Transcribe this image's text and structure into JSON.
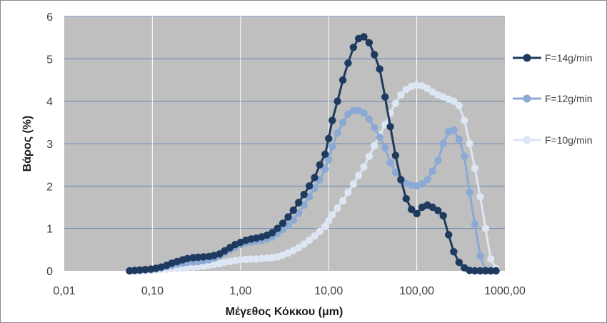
{
  "chart_data": {
    "type": "line",
    "title": "",
    "xlabel": "Μέγεθος Κόκκου (μm)",
    "ylabel": "Βάρος (%)",
    "x_scale": "log",
    "xlim": [
      0.01,
      1000
    ],
    "ylim": [
      0,
      6
    ],
    "x_ticks": [
      0.01,
      0.1,
      1,
      10,
      100,
      1000
    ],
    "x_tick_labels": [
      "0,01",
      "0,10",
      "1,00",
      "10,00",
      "100,00",
      "1000,00"
    ],
    "y_ticks": [
      0,
      1,
      2,
      3,
      4,
      5,
      6
    ],
    "y_tick_labels": [
      "0",
      "1",
      "2",
      "3",
      "4",
      "5",
      "6"
    ],
    "grid": true,
    "legend_position": "right",
    "series": [
      {
        "name": "F=14g/min",
        "color": "#1f3a5f",
        "marker": "circle",
        "points": [
          [
            0.055,
            0
          ],
          [
            0.063,
            0.01
          ],
          [
            0.072,
            0.02
          ],
          [
            0.083,
            0.03
          ],
          [
            0.096,
            0.04
          ],
          [
            0.11,
            0.06
          ],
          [
            0.126,
            0.09
          ],
          [
            0.145,
            0.13
          ],
          [
            0.166,
            0.18
          ],
          [
            0.191,
            0.22
          ],
          [
            0.22,
            0.26
          ],
          [
            0.25,
            0.29
          ],
          [
            0.29,
            0.31
          ],
          [
            0.33,
            0.32
          ],
          [
            0.38,
            0.33
          ],
          [
            0.44,
            0.34
          ],
          [
            0.5,
            0.36
          ],
          [
            0.58,
            0.4
          ],
          [
            0.66,
            0.47
          ],
          [
            0.76,
            0.55
          ],
          [
            0.87,
            0.62
          ],
          [
            1.0,
            0.67
          ],
          [
            1.15,
            0.72
          ],
          [
            1.32,
            0.75
          ],
          [
            1.51,
            0.77
          ],
          [
            1.74,
            0.8
          ],
          [
            2.0,
            0.84
          ],
          [
            2.3,
            0.9
          ],
          [
            2.63,
            1.0
          ],
          [
            3.02,
            1.12
          ],
          [
            3.47,
            1.27
          ],
          [
            3.98,
            1.43
          ],
          [
            4.57,
            1.61
          ],
          [
            5.25,
            1.8
          ],
          [
            6.03,
            2.0
          ],
          [
            6.92,
            2.2
          ],
          [
            7.94,
            2.5
          ],
          [
            9.12,
            2.75
          ],
          [
            10.0,
            3.12
          ],
          [
            11.0,
            3.55
          ],
          [
            12.6,
            4.0
          ],
          [
            14.5,
            4.5
          ],
          [
            16.6,
            4.9
          ],
          [
            19.1,
            5.27
          ],
          [
            21.9,
            5.48
          ],
          [
            25.1,
            5.52
          ],
          [
            28.8,
            5.38
          ],
          [
            33.1,
            5.1
          ],
          [
            38.0,
            4.76
          ],
          [
            43.7,
            4.1
          ],
          [
            50.1,
            3.4
          ],
          [
            57.5,
            2.72
          ],
          [
            66.1,
            2.15
          ],
          [
            75.9,
            1.7
          ],
          [
            87.1,
            1.45
          ],
          [
            100,
            1.35
          ],
          [
            115,
            1.5
          ],
          [
            132,
            1.55
          ],
          [
            151,
            1.5
          ],
          [
            174,
            1.42
          ],
          [
            200,
            1.3
          ],
          [
            230,
            0.85
          ],
          [
            263,
            0.45
          ],
          [
            302,
            0.2
          ],
          [
            347,
            0.07
          ],
          [
            398,
            0.01
          ],
          [
            457,
            0
          ],
          [
            525,
            0
          ],
          [
            603,
            0
          ],
          [
            692,
            0
          ],
          [
            794,
            0
          ]
        ]
      },
      {
        "name": "F=12g/min",
        "color": "#8aa9d4",
        "marker": "circle",
        "points": [
          [
            0.055,
            0
          ],
          [
            0.063,
            0.01
          ],
          [
            0.072,
            0.01
          ],
          [
            0.083,
            0.02
          ],
          [
            0.096,
            0.03
          ],
          [
            0.11,
            0.05
          ],
          [
            0.126,
            0.07
          ],
          [
            0.145,
            0.1
          ],
          [
            0.166,
            0.13
          ],
          [
            0.191,
            0.16
          ],
          [
            0.22,
            0.18
          ],
          [
            0.25,
            0.2
          ],
          [
            0.29,
            0.21
          ],
          [
            0.33,
            0.22
          ],
          [
            0.38,
            0.24
          ],
          [
            0.44,
            0.26
          ],
          [
            0.5,
            0.3
          ],
          [
            0.58,
            0.36
          ],
          [
            0.66,
            0.42
          ],
          [
            0.76,
            0.5
          ],
          [
            0.87,
            0.56
          ],
          [
            1.0,
            0.62
          ],
          [
            1.15,
            0.66
          ],
          [
            1.32,
            0.68
          ],
          [
            1.51,
            0.7
          ],
          [
            1.74,
            0.72
          ],
          [
            2.0,
            0.75
          ],
          [
            2.3,
            0.8
          ],
          [
            2.63,
            0.88
          ],
          [
            3.02,
            0.98
          ],
          [
            3.47,
            1.08
          ],
          [
            3.98,
            1.2
          ],
          [
            4.57,
            1.36
          ],
          [
            5.25,
            1.55
          ],
          [
            6.03,
            1.75
          ],
          [
            6.92,
            1.95
          ],
          [
            7.94,
            2.15
          ],
          [
            9.12,
            2.4
          ],
          [
            10.0,
            2.62
          ],
          [
            11.0,
            2.93
          ],
          [
            12.6,
            3.25
          ],
          [
            14.5,
            3.5
          ],
          [
            16.6,
            3.7
          ],
          [
            19.1,
            3.78
          ],
          [
            21.9,
            3.78
          ],
          [
            25.1,
            3.72
          ],
          [
            28.8,
            3.58
          ],
          [
            33.1,
            3.38
          ],
          [
            38.0,
            3.15
          ],
          [
            43.7,
            2.9
          ],
          [
            50.1,
            2.55
          ],
          [
            57.5,
            2.32
          ],
          [
            66.1,
            2.15
          ],
          [
            75.9,
            2.06
          ],
          [
            87.1,
            2.02
          ],
          [
            100,
            2.0
          ],
          [
            115,
            2.05
          ],
          [
            132,
            2.15
          ],
          [
            151,
            2.35
          ],
          [
            174,
            2.6
          ],
          [
            200,
            3.0
          ],
          [
            230,
            3.28
          ],
          [
            263,
            3.32
          ],
          [
            302,
            3.1
          ],
          [
            347,
            2.7
          ],
          [
            398,
            1.85
          ],
          [
            457,
            1.1
          ],
          [
            525,
            0.35
          ],
          [
            603,
            0.02
          ],
          [
            692,
            0
          ],
          [
            794,
            0
          ]
        ]
      },
      {
        "name": "F=10g/min",
        "color": "#dde6f3",
        "marker": "circle",
        "points": [
          [
            0.055,
            0
          ],
          [
            0.063,
            0
          ],
          [
            0.072,
            0
          ],
          [
            0.083,
            0
          ],
          [
            0.096,
            0.01
          ],
          [
            0.11,
            0.02
          ],
          [
            0.126,
            0.03
          ],
          [
            0.145,
            0.04
          ],
          [
            0.166,
            0.05
          ],
          [
            0.191,
            0.06
          ],
          [
            0.22,
            0.07
          ],
          [
            0.25,
            0.08
          ],
          [
            0.29,
            0.09
          ],
          [
            0.33,
            0.1
          ],
          [
            0.38,
            0.11
          ],
          [
            0.44,
            0.13
          ],
          [
            0.5,
            0.15
          ],
          [
            0.58,
            0.17
          ],
          [
            0.66,
            0.2
          ],
          [
            0.76,
            0.22
          ],
          [
            0.87,
            0.24
          ],
          [
            1.0,
            0.26
          ],
          [
            1.15,
            0.27
          ],
          [
            1.32,
            0.28
          ],
          [
            1.51,
            0.28
          ],
          [
            1.74,
            0.29
          ],
          [
            2.0,
            0.3
          ],
          [
            2.3,
            0.31
          ],
          [
            2.63,
            0.33
          ],
          [
            3.02,
            0.37
          ],
          [
            3.47,
            0.42
          ],
          [
            3.98,
            0.48
          ],
          [
            4.57,
            0.55
          ],
          [
            5.25,
            0.63
          ],
          [
            6.03,
            0.72
          ],
          [
            6.92,
            0.82
          ],
          [
            7.94,
            0.93
          ],
          [
            9.12,
            1.05
          ],
          [
            10.0,
            1.18
          ],
          [
            11.0,
            1.32
          ],
          [
            12.6,
            1.48
          ],
          [
            14.5,
            1.65
          ],
          [
            16.6,
            1.85
          ],
          [
            19.1,
            2.05
          ],
          [
            21.9,
            2.25
          ],
          [
            25.1,
            2.45
          ],
          [
            28.8,
            2.7
          ],
          [
            33.1,
            2.95
          ],
          [
            38.0,
            3.2
          ],
          [
            43.7,
            3.45
          ],
          [
            50.1,
            3.72
          ],
          [
            57.5,
            3.95
          ],
          [
            66.1,
            4.15
          ],
          [
            75.9,
            4.28
          ],
          [
            87.1,
            4.35
          ],
          [
            100,
            4.38
          ],
          [
            115,
            4.36
          ],
          [
            132,
            4.3
          ],
          [
            151,
            4.22
          ],
          [
            174,
            4.15
          ],
          [
            200,
            4.1
          ],
          [
            230,
            4.05
          ],
          [
            263,
            4.0
          ],
          [
            302,
            3.9
          ],
          [
            347,
            3.55
          ],
          [
            398,
            3.0
          ],
          [
            457,
            2.42
          ],
          [
            525,
            1.75
          ],
          [
            603,
            1.0
          ],
          [
            692,
            0.28
          ],
          [
            794,
            0.05
          ]
        ]
      }
    ]
  }
}
